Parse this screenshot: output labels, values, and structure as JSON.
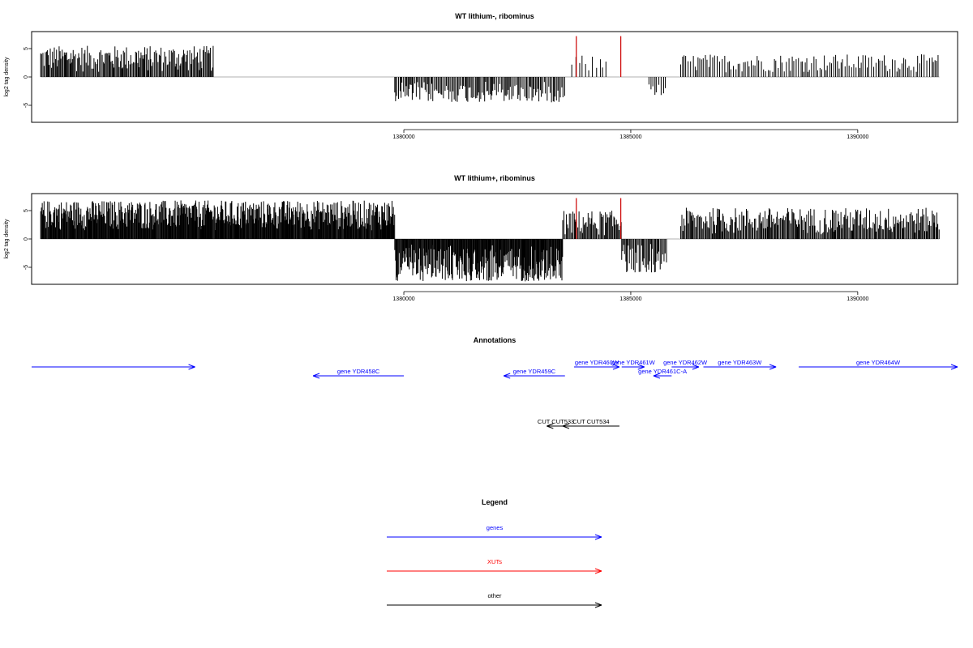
{
  "chart_data": [
    {
      "type": "bar",
      "title": "WT lithium-, ribominus",
      "xlabel": "",
      "ylabel": "log2 tag density",
      "xlim": [
        1371800,
        1392200
      ],
      "ylim": [
        -8,
        8
      ],
      "x_ticks": [
        1380000,
        1385000,
        1390000
      ],
      "y_ticks": [
        -5,
        0,
        5
      ],
      "grid": false,
      "segments": [
        {
          "start": 1372000,
          "end": 1375800,
          "sign": 1,
          "min": 0.8,
          "max": 5.5,
          "step": 22
        },
        {
          "start": 1379800,
          "end": 1383550,
          "sign": -1,
          "min": 0.8,
          "max": 4.5,
          "step": 28
        },
        {
          "start": 1383700,
          "end": 1384500,
          "sign": 1,
          "min": 0.5,
          "max": 3.8,
          "step": 70
        },
        {
          "start": 1385400,
          "end": 1385800,
          "sign": -1,
          "min": 1.0,
          "max": 3.3,
          "step": 45
        },
        {
          "start": 1386100,
          "end": 1391800,
          "sign": 1,
          "min": 0.8,
          "max": 4.0,
          "step": 45
        }
      ],
      "highlights": [
        {
          "x": 1383800,
          "value": 7.2,
          "color": "#cc0000"
        },
        {
          "x": 1384780,
          "value": 7.2,
          "color": "#cc0000"
        }
      ]
    },
    {
      "type": "bar",
      "title": "WT lithium+, ribominus",
      "xlabel": "",
      "ylabel": "log2 tag density",
      "xlim": [
        1371800,
        1392200
      ],
      "ylim": [
        -8,
        8
      ],
      "x_ticks": [
        1380000,
        1385000,
        1390000
      ],
      "y_ticks": [
        -5,
        0,
        5
      ],
      "grid": false,
      "segments": [
        {
          "start": 1372000,
          "end": 1379800,
          "sign": 1,
          "min": 1.5,
          "max": 6.8,
          "step": 14
        },
        {
          "start": 1379800,
          "end": 1383500,
          "sign": -1,
          "min": 1.0,
          "max": 7.5,
          "step": 14
        },
        {
          "start": 1383500,
          "end": 1384800,
          "sign": 1,
          "min": 0.5,
          "max": 5.0,
          "step": 22
        },
        {
          "start": 1384800,
          "end": 1385800,
          "sign": -1,
          "min": 0.8,
          "max": 6.0,
          "step": 22
        },
        {
          "start": 1386100,
          "end": 1391800,
          "sign": 1,
          "min": 0.8,
          "max": 5.5,
          "step": 22
        }
      ],
      "highlights": [
        {
          "x": 1383800,
          "value": 7.2,
          "color": "#cc0000"
        },
        {
          "x": 1384780,
          "value": 7.2,
          "color": "#cc0000"
        }
      ]
    }
  ],
  "annotations": {
    "title": "Annotations",
    "genes": [
      {
        "label": "",
        "start": 1371800,
        "end": 1375400,
        "strand": "+",
        "row": 1
      },
      {
        "label": "gene YDR458C",
        "start": 1378000,
        "end": 1380000,
        "strand": "-",
        "row": 2
      },
      {
        "label": "gene YDR459C",
        "start": 1382200,
        "end": 1383550,
        "strand": "-",
        "row": 2
      },
      {
        "label": "gene YDR460W",
        "start": 1383750,
        "end": 1384750,
        "strand": "+",
        "row": 1
      },
      {
        "label": "gene YDR461W",
        "start": 1384800,
        "end": 1385300,
        "strand": "+",
        "row": 1
      },
      {
        "label": "gene YDR461C-A",
        "start": 1385500,
        "end": 1385900,
        "strand": "-",
        "row": 2
      },
      {
        "label": "gene YDR462W",
        "start": 1385900,
        "end": 1386500,
        "strand": "+",
        "row": 1
      },
      {
        "label": "gene YDR463W",
        "start": 1386600,
        "end": 1388200,
        "strand": "+",
        "row": 1
      },
      {
        "label": "gene YDR464W",
        "start": 1388700,
        "end": 1392200,
        "strand": "+",
        "row": 1
      }
    ],
    "other": [
      {
        "label": "CUT CUT533",
        "start": 1383150,
        "end": 1383550,
        "strand": "-"
      },
      {
        "label": "CUT CUT534",
        "start": 1383500,
        "end": 1384750,
        "strand": "-"
      }
    ]
  },
  "legend": {
    "title": "Legend",
    "items": [
      {
        "label": "genes",
        "color": "#0000ff"
      },
      {
        "label": "XUTs",
        "color": "#ff0000"
      },
      {
        "label": "other",
        "color": "#000000"
      }
    ]
  }
}
